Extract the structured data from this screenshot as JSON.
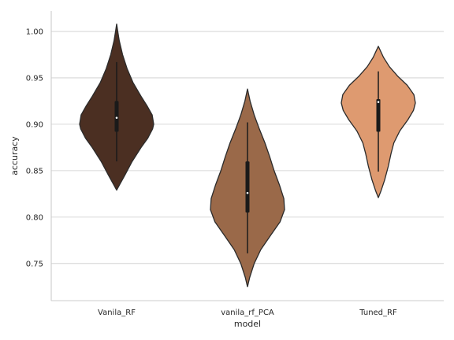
{
  "chart_data": {
    "type": "violin",
    "title": "",
    "xlabel": "model",
    "ylabel": "accuracy",
    "ylim": [
      0.71,
      1.022
    ],
    "yticks": [
      0.75,
      0.8,
      0.85,
      0.9,
      0.95,
      1.0
    ],
    "ytick_labels": [
      "0.75",
      "0.80",
      "0.85",
      "0.90",
      "0.95",
      "1.00"
    ],
    "grid": "horizontal",
    "categories": [
      "Vanila_RF",
      "vanila_rf_PCA",
      "Tuned_RF"
    ],
    "series": [
      {
        "category": "Vanila_RF",
        "color": "#4b2f22",
        "median": 0.907,
        "q1": 0.892,
        "q3": 0.925,
        "whisker_low": 0.86,
        "whisker_high": 0.967,
        "kde_range": [
          0.829,
          1.008
        ],
        "density": [
          [
            0.829,
            0.0
          ],
          [
            0.835,
            0.08
          ],
          [
            0.845,
            0.22
          ],
          [
            0.86,
            0.42
          ],
          [
            0.875,
            0.66
          ],
          [
            0.885,
            0.84
          ],
          [
            0.895,
            0.97
          ],
          [
            0.9,
            1.0
          ],
          [
            0.91,
            0.96
          ],
          [
            0.92,
            0.82
          ],
          [
            0.93,
            0.66
          ],
          [
            0.945,
            0.44
          ],
          [
            0.96,
            0.28
          ],
          [
            0.975,
            0.16
          ],
          [
            0.99,
            0.07
          ],
          [
            1.0,
            0.03
          ],
          [
            1.008,
            0.0
          ]
        ]
      },
      {
        "category": "vanila_rf_PCA",
        "color": "#9a6949",
        "median": 0.826,
        "q1": 0.805,
        "q3": 0.86,
        "whisker_low": 0.761,
        "whisker_high": 0.902,
        "kde_range": [
          0.725,
          0.938
        ],
        "density": [
          [
            0.725,
            0.0
          ],
          [
            0.735,
            0.06
          ],
          [
            0.75,
            0.18
          ],
          [
            0.765,
            0.36
          ],
          [
            0.78,
            0.62
          ],
          [
            0.795,
            0.88
          ],
          [
            0.808,
            1.0
          ],
          [
            0.82,
            0.98
          ],
          [
            0.835,
            0.86
          ],
          [
            0.85,
            0.72
          ],
          [
            0.865,
            0.6
          ],
          [
            0.88,
            0.47
          ],
          [
            0.895,
            0.32
          ],
          [
            0.91,
            0.18
          ],
          [
            0.925,
            0.07
          ],
          [
            0.938,
            0.0
          ]
        ]
      },
      {
        "category": "Tuned_RF",
        "color": "#de9a70",
        "median": 0.924,
        "q1": 0.892,
        "q3": 0.927,
        "whisker_low": 0.849,
        "whisker_high": 0.957,
        "kde_range": [
          0.821,
          0.984
        ],
        "density": [
          [
            0.821,
            0.0
          ],
          [
            0.828,
            0.07
          ],
          [
            0.84,
            0.17
          ],
          [
            0.855,
            0.27
          ],
          [
            0.868,
            0.34
          ],
          [
            0.88,
            0.42
          ],
          [
            0.893,
            0.58
          ],
          [
            0.905,
            0.8
          ],
          [
            0.915,
            0.95
          ],
          [
            0.923,
            1.0
          ],
          [
            0.932,
            0.96
          ],
          [
            0.942,
            0.78
          ],
          [
            0.952,
            0.52
          ],
          [
            0.962,
            0.3
          ],
          [
            0.972,
            0.14
          ],
          [
            0.984,
            0.0
          ]
        ]
      }
    ]
  }
}
